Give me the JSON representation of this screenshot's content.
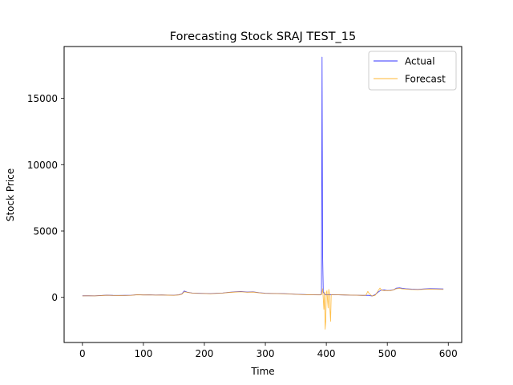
{
  "chart_data": {
    "type": "line",
    "title": "Forecasting Stock SRAJ TEST_15",
    "xlabel": "Time",
    "ylabel": "Stock Price",
    "xlim": [
      -30,
      622
    ],
    "ylim": [
      -3400,
      18900
    ],
    "xticks": [
      0,
      100,
      200,
      300,
      400,
      500,
      600
    ],
    "yticks": [
      0,
      5000,
      10000,
      15000
    ],
    "grid": false,
    "legend_position": "top-right",
    "series": [
      {
        "name": "Actual",
        "color": "#0000ff",
        "points": [
          [
            0,
            120
          ],
          [
            10,
            125
          ],
          [
            20,
            118
          ],
          [
            30,
            140
          ],
          [
            40,
            165
          ],
          [
            50,
            150
          ],
          [
            60,
            145
          ],
          [
            70,
            150
          ],
          [
            80,
            160
          ],
          [
            90,
            200
          ],
          [
            100,
            185
          ],
          [
            110,
            190
          ],
          [
            120,
            175
          ],
          [
            130,
            180
          ],
          [
            140,
            170
          ],
          [
            150,
            160
          ],
          [
            158,
            190
          ],
          [
            163,
            260
          ],
          [
            167,
            480
          ],
          [
            172,
            390
          ],
          [
            180,
            330
          ],
          [
            190,
            310
          ],
          [
            200,
            300
          ],
          [
            210,
            280
          ],
          [
            220,
            310
          ],
          [
            230,
            330
          ],
          [
            240,
            380
          ],
          [
            250,
            420
          ],
          [
            260,
            440
          ],
          [
            270,
            400
          ],
          [
            280,
            420
          ],
          [
            290,
            350
          ],
          [
            300,
            310
          ],
          [
            310,
            300
          ],
          [
            320,
            290
          ],
          [
            330,
            280
          ],
          [
            340,
            260
          ],
          [
            350,
            240
          ],
          [
            360,
            220
          ],
          [
            370,
            200
          ],
          [
            380,
            200
          ],
          [
            390,
            190
          ],
          [
            392,
            250
          ],
          [
            393,
            18100
          ],
          [
            394,
            3000
          ],
          [
            395,
            400
          ],
          [
            398,
            200
          ],
          [
            400,
            200
          ],
          [
            410,
            195
          ],
          [
            420,
            190
          ],
          [
            430,
            180
          ],
          [
            440,
            170
          ],
          [
            450,
            160
          ],
          [
            460,
            150
          ],
          [
            470,
            150
          ],
          [
            475,
            100
          ],
          [
            480,
            200
          ],
          [
            485,
            400
          ],
          [
            490,
            550
          ],
          [
            495,
            560
          ],
          [
            500,
            520
          ],
          [
            505,
            530
          ],
          [
            510,
            560
          ],
          [
            515,
            700
          ],
          [
            520,
            720
          ],
          [
            525,
            680
          ],
          [
            530,
            650
          ],
          [
            540,
            620
          ],
          [
            550,
            600
          ],
          [
            560,
            640
          ],
          [
            570,
            660
          ],
          [
            580,
            650
          ],
          [
            592,
            640
          ]
        ]
      },
      {
        "name": "Forecast",
        "color": "#ffa500",
        "points": [
          [
            0,
            110
          ],
          [
            10,
            115
          ],
          [
            20,
            110
          ],
          [
            30,
            130
          ],
          [
            40,
            160
          ],
          [
            50,
            145
          ],
          [
            60,
            140
          ],
          [
            70,
            145
          ],
          [
            80,
            155
          ],
          [
            90,
            195
          ],
          [
            100,
            180
          ],
          [
            110,
            185
          ],
          [
            120,
            170
          ],
          [
            130,
            175
          ],
          [
            140,
            165
          ],
          [
            150,
            155
          ],
          [
            158,
            180
          ],
          [
            163,
            240
          ],
          [
            167,
            420
          ],
          [
            172,
            380
          ],
          [
            180,
            320
          ],
          [
            190,
            300
          ],
          [
            200,
            290
          ],
          [
            210,
            270
          ],
          [
            220,
            300
          ],
          [
            230,
            320
          ],
          [
            240,
            370
          ],
          [
            250,
            400
          ],
          [
            260,
            420
          ],
          [
            270,
            390
          ],
          [
            280,
            400
          ],
          [
            290,
            340
          ],
          [
            300,
            300
          ],
          [
            310,
            290
          ],
          [
            320,
            280
          ],
          [
            330,
            270
          ],
          [
            340,
            250
          ],
          [
            350,
            230
          ],
          [
            360,
            210
          ],
          [
            370,
            195
          ],
          [
            380,
            190
          ],
          [
            390,
            185
          ],
          [
            392,
            200
          ],
          [
            394,
            650
          ],
          [
            395,
            -100
          ],
          [
            396,
            -900
          ],
          [
            397,
            400
          ],
          [
            398,
            -2400
          ],
          [
            399,
            -1800
          ],
          [
            400,
            350
          ],
          [
            401,
            500
          ],
          [
            402,
            -200
          ],
          [
            403,
            -800
          ],
          [
            404,
            600
          ],
          [
            405,
            300
          ],
          [
            406,
            -1000
          ],
          [
            407,
            -1800
          ],
          [
            408,
            200
          ],
          [
            410,
            200
          ],
          [
            420,
            190
          ],
          [
            430,
            180
          ],
          [
            440,
            170
          ],
          [
            450,
            160
          ],
          [
            460,
            150
          ],
          [
            465,
            160
          ],
          [
            468,
            450
          ],
          [
            470,
            300
          ],
          [
            475,
            100
          ],
          [
            480,
            150
          ],
          [
            485,
            500
          ],
          [
            488,
            700
          ],
          [
            490,
            550
          ],
          [
            495,
            500
          ],
          [
            500,
            520
          ],
          [
            505,
            500
          ],
          [
            510,
            560
          ],
          [
            515,
            650
          ],
          [
            520,
            680
          ],
          [
            525,
            640
          ],
          [
            530,
            620
          ],
          [
            540,
            590
          ],
          [
            550,
            580
          ],
          [
            560,
            610
          ],
          [
            570,
            620
          ],
          [
            580,
            610
          ],
          [
            592,
            600
          ]
        ]
      }
    ]
  }
}
